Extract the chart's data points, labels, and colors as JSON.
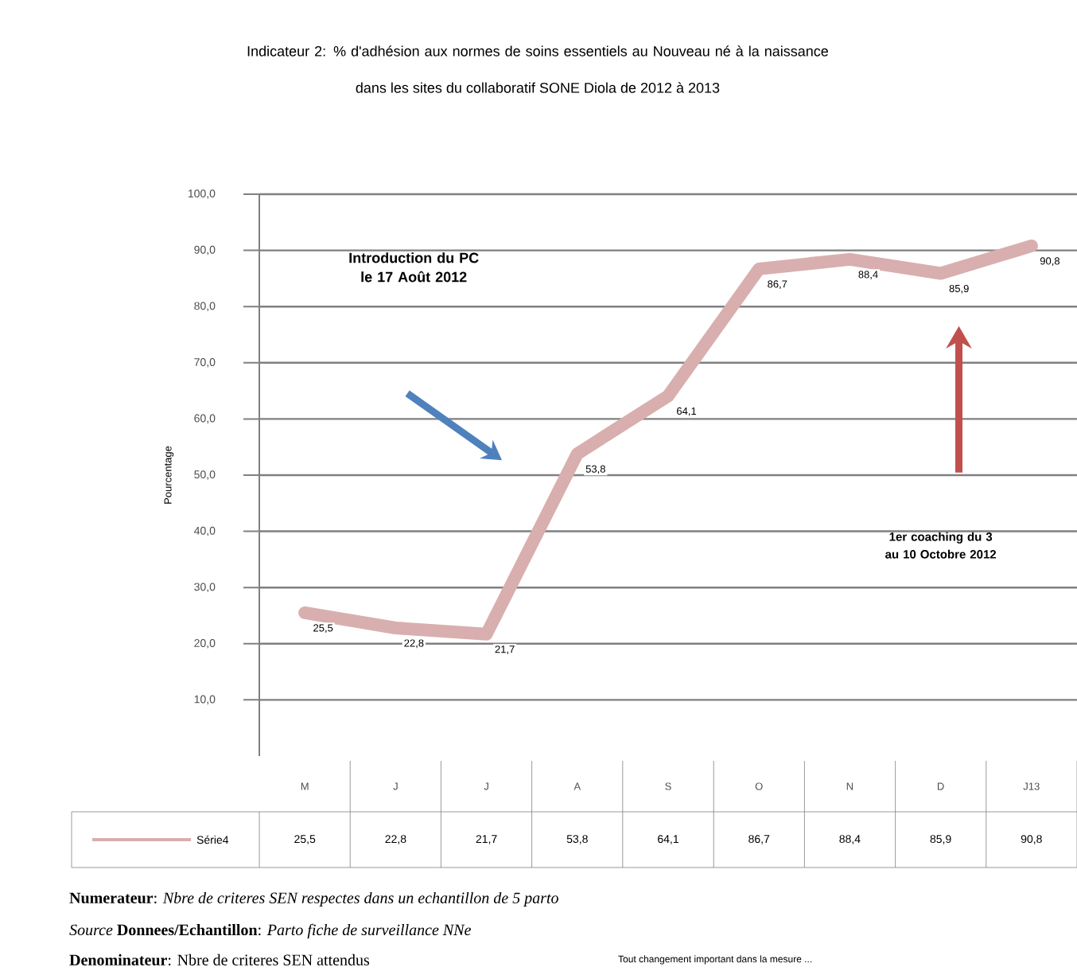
{
  "chart_data": {
    "type": "line",
    "title": "Indicateur 2: % d'adhésion aux normes de soins essentiels au Nouveau né à la naissance",
    "subtitle": "dans les sites du collaboratif SONE Diola de 2012 à 2013",
    "ylabel": "Pourcentage",
    "categories": [
      "M",
      "J",
      "J",
      "A",
      "S",
      "O",
      "N",
      "D",
      "J13"
    ],
    "series": [
      {
        "name": "Série4",
        "color": "#d8afae",
        "values": [
          25.5,
          22.8,
          21.7,
          53.8,
          64.1,
          86.7,
          88.4,
          85.9,
          90.8
        ],
        "value_labels": [
          "25,5",
          "22,8",
          "21,7",
          "53,8",
          "64,1",
          "86,7",
          "88,4",
          "85,9",
          "90,8"
        ]
      }
    ],
    "ylim": [
      0,
      100
    ],
    "yticks": [
      {
        "value": 10,
        "label": "10,0"
      },
      {
        "value": 20,
        "label": "20,0"
      },
      {
        "value": 30,
        "label": "30,0"
      },
      {
        "value": 40,
        "label": "40,0"
      },
      {
        "value": 50,
        "label": "50,0"
      },
      {
        "value": 60,
        "label": "60,0"
      },
      {
        "value": 70,
        "label": "70,0"
      },
      {
        "value": 80,
        "label": "80,0"
      },
      {
        "value": 90,
        "label": "90,0"
      },
      {
        "value": 100,
        "label": "100,0"
      }
    ],
    "grid": "y",
    "legend": "bottom",
    "annotations": [
      "Introduction du PC le 17 Août 2012",
      "1er coaching du 3 au 10 Octobre 2012",
      "**Numerateur**:   *Nbre de criteres SEN respectes dans un echantillon de 5 parto*",
      "*Source* **Donnees/Echantillon**: *Parto fiche de surveillance NNe*",
      "**Denominateur**:     Nbre de criteres SEN attendus",
      "Tout changement important dans la mesure ..."
    ]
  }
}
